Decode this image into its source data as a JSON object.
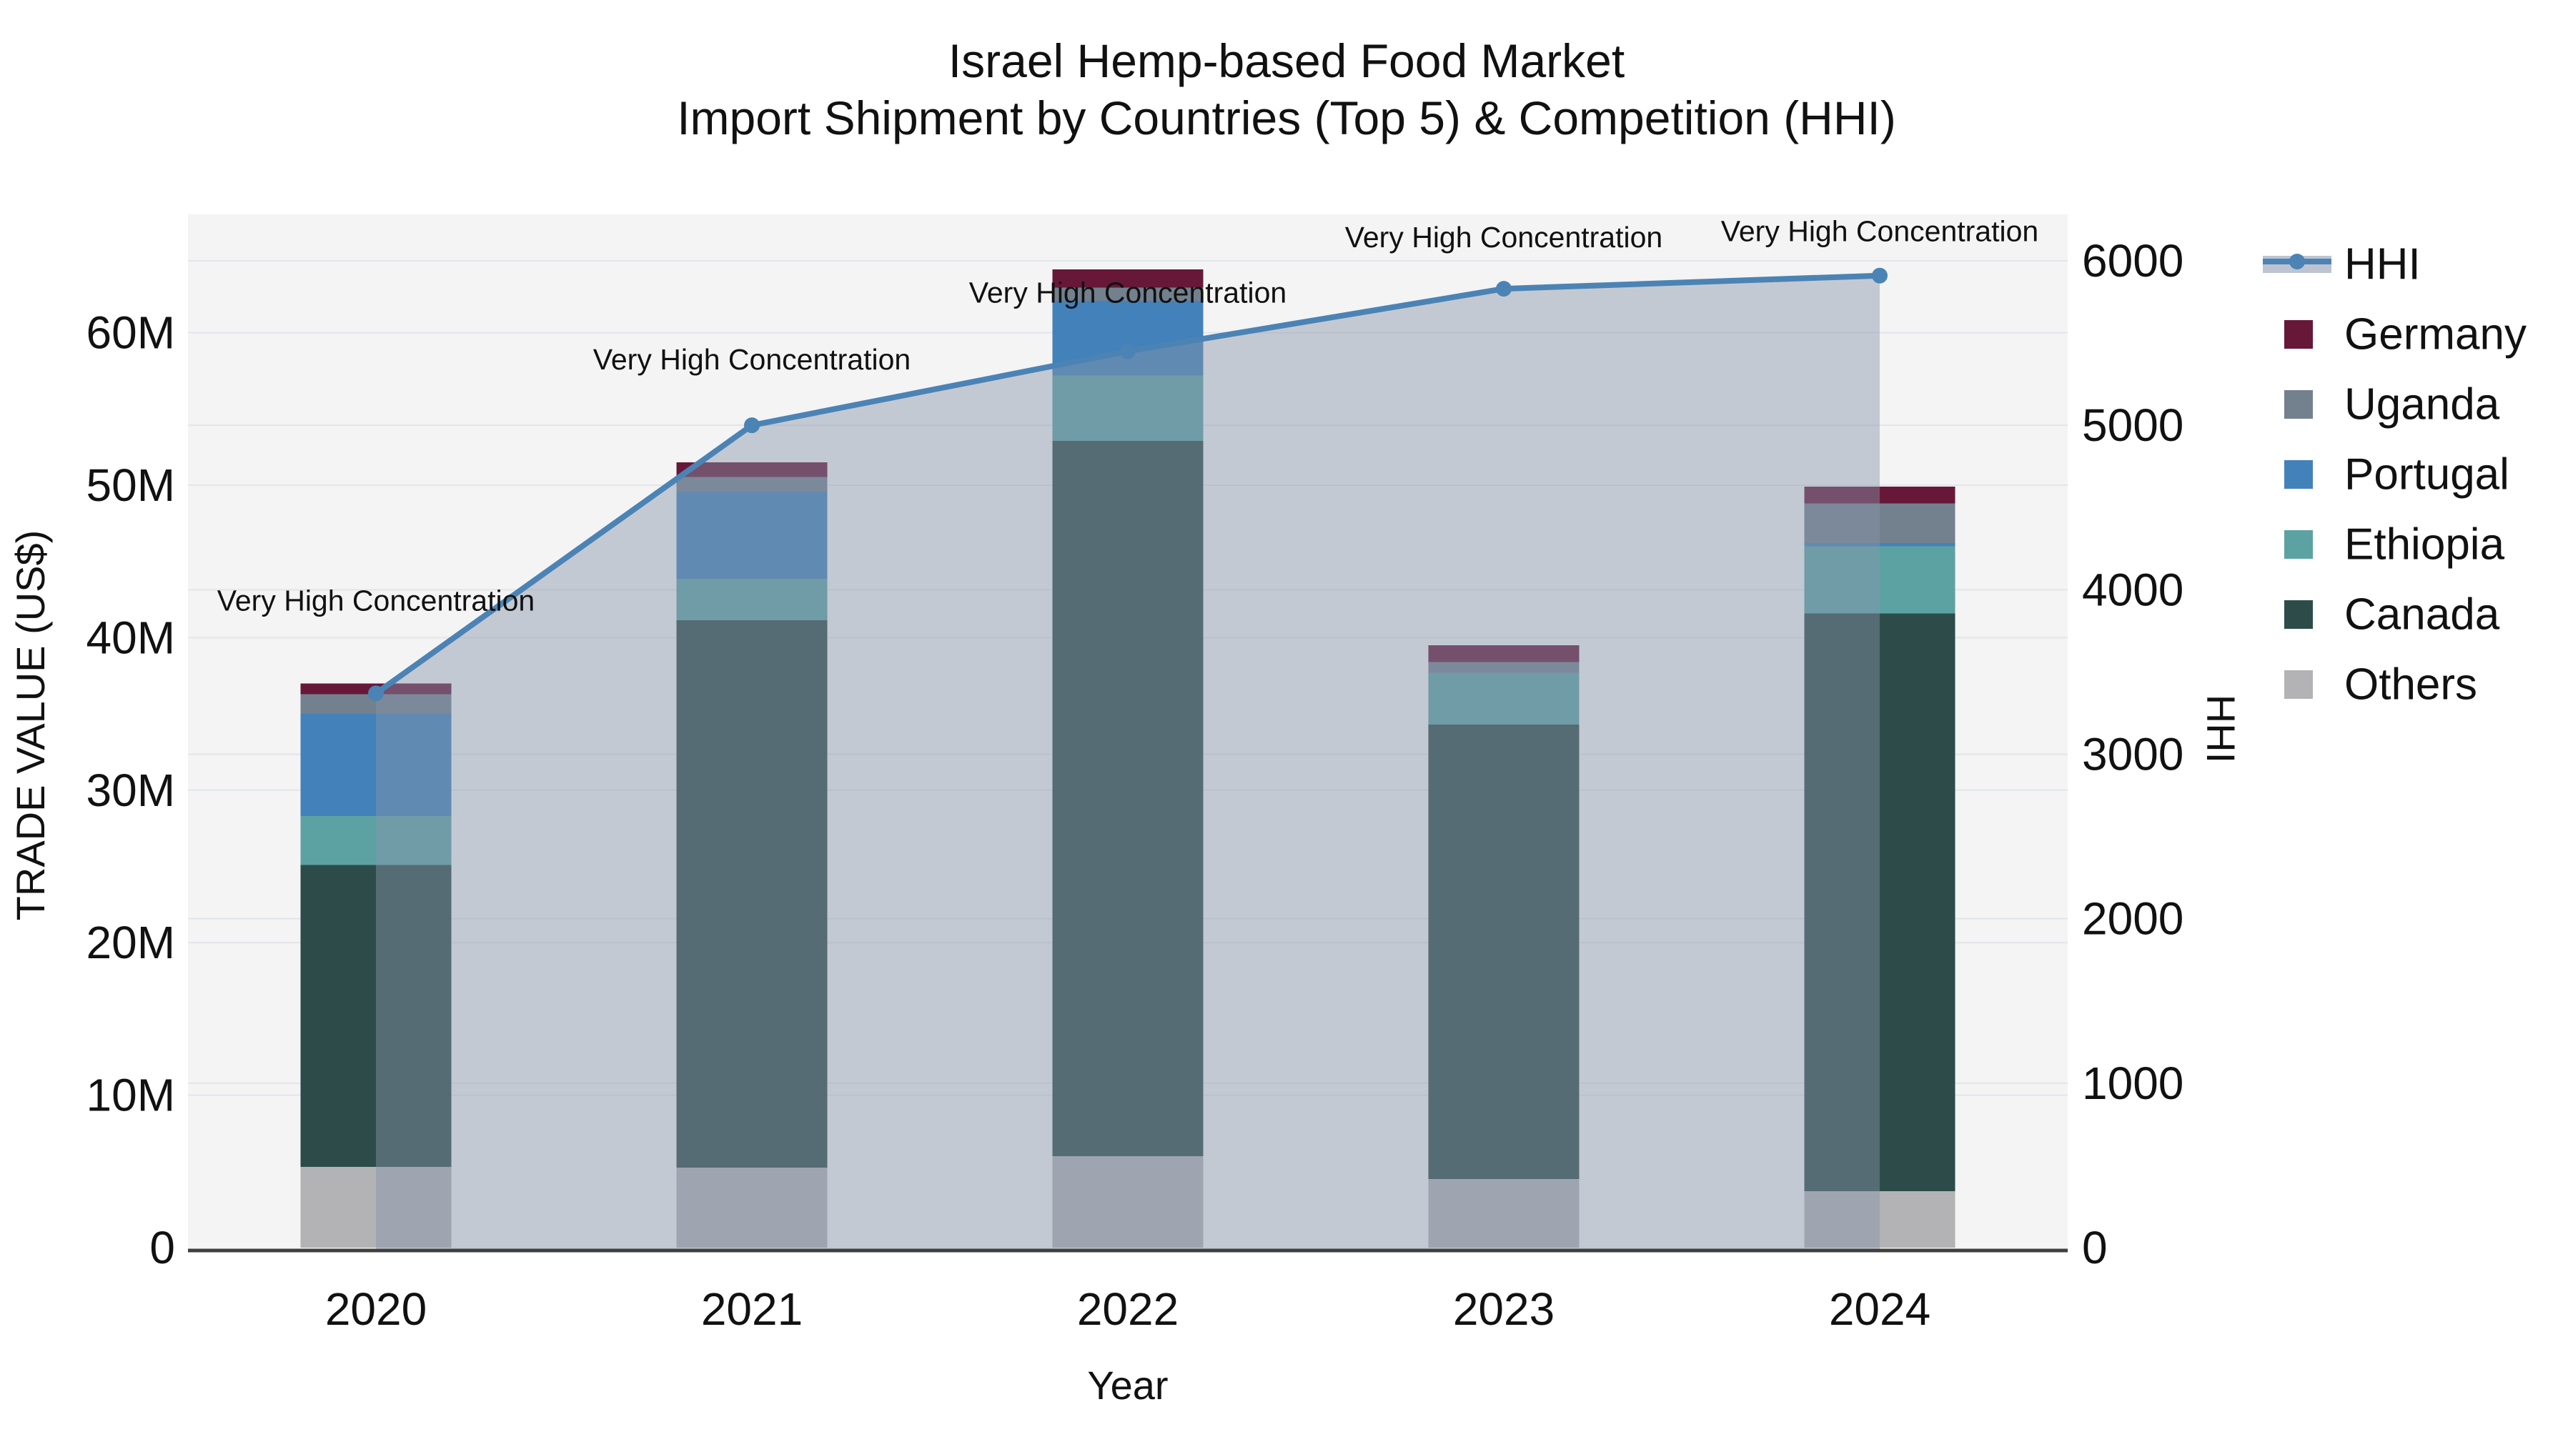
{
  "title": {
    "line1": "Israel Hemp-based Food Market",
    "line2": "Import Shipment by Countries (Top 5) & Competition (HHI)"
  },
  "axes": {
    "x": {
      "label": "Year",
      "categories": [
        "2020",
        "2021",
        "2022",
        "2023",
        "2024"
      ]
    },
    "y_left": {
      "label": "TRADE VALUE (US$)",
      "ticks": [
        "0",
        "10M",
        "20M",
        "30M",
        "40M",
        "50M",
        "60M"
      ],
      "unit": "M US$"
    },
    "y_right": {
      "label": "HHI",
      "ticks": [
        "0",
        "1000",
        "2000",
        "3000",
        "4000",
        "5000",
        "6000"
      ]
    }
  },
  "chart_data": {
    "type": "bar",
    "subtype": "stacked-bars-with-line",
    "categories": [
      "2020",
      "2021",
      "2022",
      "2023",
      "2024"
    ],
    "series": [
      {
        "name": "Others",
        "color": "#b3b3b5",
        "values": [
          5.3,
          5.25,
          6.0,
          4.5,
          3.7
        ]
      },
      {
        "name": "Canada",
        "color": "#2d4c49",
        "values": [
          19.8,
          35.9,
          46.9,
          29.8,
          37.9
        ]
      },
      {
        "name": "Ethiopia",
        "color": "#5ca2a3",
        "values": [
          3.2,
          2.7,
          4.3,
          3.4,
          4.4
        ]
      },
      {
        "name": "Portugal",
        "color": "#4381bb",
        "values": [
          6.7,
          5.7,
          4.9,
          0.0,
          0.2
        ]
      },
      {
        "name": "Uganda",
        "color": "#73808e",
        "values": [
          1.3,
          1.0,
          0.85,
          0.7,
          2.6
        ]
      },
      {
        "name": "Germany",
        "color": "#671839",
        "values": [
          0.7,
          0.95,
          1.2,
          1.1,
          1.1
        ]
      }
    ],
    "line_series": {
      "name": "HHI",
      "color": "#4c83b5",
      "fill_color": "rgba(135,148,170,0.45)",
      "values": [
        3370,
        5000,
        5450,
        5830,
        5910
      ]
    },
    "annotations": [
      {
        "text": "Very High Concentration",
        "category": "2020"
      },
      {
        "text": "Very High Concentration",
        "category": "2021"
      },
      {
        "text": "Very High Concentration",
        "category": "2022"
      },
      {
        "text": "Very High Concentration",
        "category": "2023"
      },
      {
        "text": "Very High Concentration",
        "category": "2024"
      }
    ],
    "ylim_left_M": [
      0,
      67.7
    ],
    "ylim_right": [
      0,
      6280
    ],
    "grid": true,
    "legend_position": "right"
  },
  "legend": {
    "items": [
      {
        "label": "HHI",
        "type": "line",
        "color": "#4c83b5"
      },
      {
        "label": "Germany",
        "type": "swatch",
        "color": "#671839"
      },
      {
        "label": "Uganda",
        "type": "swatch",
        "color": "#73808e"
      },
      {
        "label": "Portugal",
        "type": "swatch",
        "color": "#4381bb"
      },
      {
        "label": "Ethiopia",
        "type": "swatch",
        "color": "#5ca2a3"
      },
      {
        "label": "Canada",
        "type": "swatch",
        "color": "#2d4c49"
      },
      {
        "label": "Others",
        "type": "swatch",
        "color": "#b3b3b5"
      }
    ]
  },
  "colors": {
    "plot_background": "#f4f4f4",
    "gridline": "#e2e5e9",
    "axis_line": "#3f3f3f",
    "text": "#111111"
  }
}
